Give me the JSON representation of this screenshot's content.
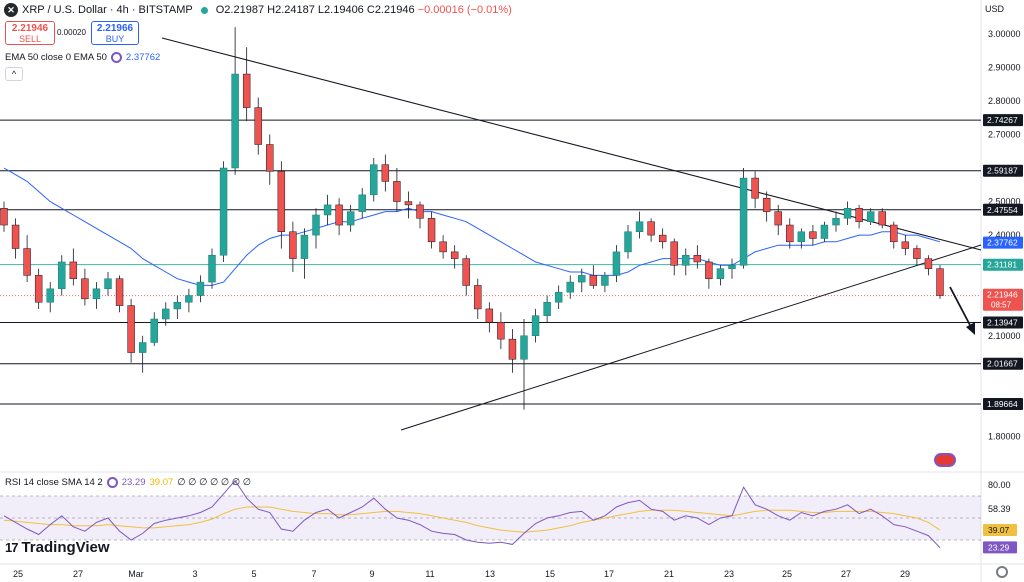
{
  "header": {
    "symbol_icon": "xrp-logo-icon",
    "title": "XRP / U.S. Dollar · 4h · BITSTAMP",
    "status_icon": "market-open-dot-icon",
    "ohlc": {
      "o": "O2.21987",
      "h": "H2.24187",
      "l": "L2.19406",
      "c": "C2.21946",
      "chg": "−0.00016 (−0.01%)"
    }
  },
  "trade": {
    "sell_price": "2.21946",
    "sell_label": "SELL",
    "spread": "0.00020",
    "buy_price": "2.21966",
    "buy_label": "BUY"
  },
  "ema_legend": {
    "label": "EMA 50 close 0 EMA 50",
    "value": "2.37762"
  },
  "rsi_legend": {
    "label": "RSI 14 close SMA 14 2",
    "rsi": "23.29",
    "sma": "39.07",
    "rest": "∅ ∅ ∅ ∅ ∅ ∅ ∅"
  },
  "currency": "USD",
  "logo": {
    "mark": "17",
    "text": "TradingView"
  },
  "chart_data": {
    "type": "candlestick",
    "yrange": [
      1.7,
      3.05
    ],
    "price_ticks": [
      "3.00000",
      "2.90000",
      "2.80000",
      "2.70000",
      "2.50000",
      "2.40000",
      "2.10000",
      "1.80000"
    ],
    "price_tick_values": [
      3.0,
      2.9,
      2.8,
      2.7,
      2.5,
      2.4,
      2.1,
      1.8
    ],
    "x_labels": [
      "25",
      "27",
      "Mar",
      "3",
      "5",
      "7",
      "9",
      "11",
      "13",
      "15",
      "17",
      "Mar 20",
      "21",
      "23",
      "25",
      "27",
      "29"
    ],
    "x_labels_shown": [
      "25",
      "27",
      "Mar",
      "3",
      "5",
      "7",
      "9",
      "11",
      "13",
      "15",
      "17",
      "20",
      "21",
      "23",
      "25",
      "27",
      "29"
    ],
    "level_lines": [
      2.74267,
      2.59187,
      2.47554,
      2.13947,
      2.01667,
      1.89664
    ],
    "level_labels": [
      "2.74267",
      "2.59187",
      "2.47554",
      "2.13947",
      "2.01667",
      "1.89664"
    ],
    "ema_label": "2.37762",
    "ema_value": 2.37762,
    "green_line_label": "2.31181",
    "green_line_value": 2.31181,
    "last_price_label": "2.21946",
    "countdown": "08:57",
    "last_price_value": 2.21946,
    "candles": [
      [
        2.48,
        2.5,
        2.41,
        2.43
      ],
      [
        2.43,
        2.45,
        2.33,
        2.36
      ],
      [
        2.36,
        2.4,
        2.26,
        2.28
      ],
      [
        2.28,
        2.3,
        2.18,
        2.2
      ],
      [
        2.2,
        2.26,
        2.17,
        2.24
      ],
      [
        2.24,
        2.34,
        2.22,
        2.32
      ],
      [
        2.32,
        2.36,
        2.25,
        2.27
      ],
      [
        2.27,
        2.3,
        2.19,
        2.21
      ],
      [
        2.21,
        2.26,
        2.18,
        2.24
      ],
      [
        2.24,
        2.29,
        2.22,
        2.27
      ],
      [
        2.27,
        2.28,
        2.17,
        2.19
      ],
      [
        2.19,
        2.21,
        2.02,
        2.05
      ],
      [
        2.05,
        2.1,
        1.99,
        2.08
      ],
      [
        2.08,
        2.17,
        2.07,
        2.15
      ],
      [
        2.15,
        2.2,
        2.13,
        2.18
      ],
      [
        2.18,
        2.22,
        2.15,
        2.2
      ],
      [
        2.2,
        2.24,
        2.17,
        2.22
      ],
      [
        2.22,
        2.28,
        2.2,
        2.26
      ],
      [
        2.26,
        2.36,
        2.24,
        2.34
      ],
      [
        2.34,
        2.62,
        2.32,
        2.6
      ],
      [
        2.6,
        3.02,
        2.58,
        2.88
      ],
      [
        2.88,
        2.96,
        2.74,
        2.78
      ],
      [
        2.78,
        2.81,
        2.64,
        2.67
      ],
      [
        2.67,
        2.7,
        2.55,
        2.59
      ],
      [
        2.59,
        2.62,
        2.36,
        2.41
      ],
      [
        2.41,
        2.44,
        2.29,
        2.33
      ],
      [
        2.33,
        2.42,
        2.27,
        2.4
      ],
      [
        2.4,
        2.48,
        2.36,
        2.46
      ],
      [
        2.46,
        2.52,
        2.43,
        2.49
      ],
      [
        2.49,
        2.51,
        2.4,
        2.43
      ],
      [
        2.43,
        2.49,
        2.41,
        2.47
      ],
      [
        2.47,
        2.54,
        2.45,
        2.52
      ],
      [
        2.52,
        2.63,
        2.5,
        2.61
      ],
      [
        2.61,
        2.64,
        2.53,
        2.56
      ],
      [
        2.56,
        2.6,
        2.47,
        2.5
      ],
      [
        2.5,
        2.53,
        2.45,
        2.49
      ],
      [
        2.49,
        2.5,
        2.42,
        2.45
      ],
      [
        2.45,
        2.47,
        2.36,
        2.38
      ],
      [
        2.38,
        2.4,
        2.33,
        2.35
      ],
      [
        2.35,
        2.37,
        2.3,
        2.33
      ],
      [
        2.33,
        2.34,
        2.22,
        2.25
      ],
      [
        2.25,
        2.27,
        2.15,
        2.18
      ],
      [
        2.18,
        2.2,
        2.11,
        2.14
      ],
      [
        2.14,
        2.17,
        2.06,
        2.09
      ],
      [
        2.09,
        2.12,
        1.99,
        2.03
      ],
      [
        2.03,
        2.15,
        1.88,
        2.1
      ],
      [
        2.1,
        2.18,
        2.08,
        2.16
      ],
      [
        2.16,
        2.22,
        2.14,
        2.2
      ],
      [
        2.2,
        2.25,
        2.18,
        2.23
      ],
      [
        2.23,
        2.28,
        2.21,
        2.26
      ],
      [
        2.26,
        2.3,
        2.23,
        2.28
      ],
      [
        2.28,
        2.31,
        2.24,
        2.25
      ],
      [
        2.25,
        2.29,
        2.23,
        2.28
      ],
      [
        2.28,
        2.37,
        2.26,
        2.35
      ],
      [
        2.35,
        2.43,
        2.33,
        2.41
      ],
      [
        2.41,
        2.47,
        2.39,
        2.44
      ],
      [
        2.44,
        2.45,
        2.38,
        2.4
      ],
      [
        2.4,
        2.42,
        2.36,
        2.38
      ],
      [
        2.38,
        2.39,
        2.28,
        2.31
      ],
      [
        2.31,
        2.36,
        2.28,
        2.34
      ],
      [
        2.34,
        2.37,
        2.3,
        2.32
      ],
      [
        2.32,
        2.33,
        2.24,
        2.27
      ],
      [
        2.27,
        2.31,
        2.25,
        2.3
      ],
      [
        2.3,
        2.33,
        2.27,
        2.31
      ],
      [
        2.31,
        2.6,
        2.3,
        2.57
      ],
      [
        2.57,
        2.59,
        2.48,
        2.51
      ],
      [
        2.51,
        2.53,
        2.44,
        2.47
      ],
      [
        2.47,
        2.49,
        2.4,
        2.43
      ],
      [
        2.43,
        2.45,
        2.36,
        2.38
      ],
      [
        2.38,
        2.42,
        2.36,
        2.41
      ],
      [
        2.41,
        2.43,
        2.37,
        2.39
      ],
      [
        2.39,
        2.44,
        2.38,
        2.43
      ],
      [
        2.43,
        2.47,
        2.41,
        2.45
      ],
      [
        2.45,
        2.5,
        2.43,
        2.48
      ],
      [
        2.48,
        2.49,
        2.42,
        2.44
      ],
      [
        2.44,
        2.48,
        2.43,
        2.47
      ],
      [
        2.47,
        2.48,
        2.42,
        2.43
      ],
      [
        2.43,
        2.44,
        2.36,
        2.38
      ],
      [
        2.38,
        2.4,
        2.34,
        2.36
      ],
      [
        2.36,
        2.37,
        2.31,
        2.33
      ],
      [
        2.33,
        2.34,
        2.28,
        2.3
      ],
      [
        2.3,
        2.31,
        2.21,
        2.22
      ]
    ],
    "ema_series": [
      2.6,
      2.58,
      2.56,
      2.53,
      2.5,
      2.48,
      2.46,
      2.44,
      2.42,
      2.4,
      2.38,
      2.36,
      2.33,
      2.31,
      2.29,
      2.27,
      2.26,
      2.25,
      2.25,
      2.26,
      2.3,
      2.34,
      2.37,
      2.39,
      2.4,
      2.4,
      2.41,
      2.42,
      2.43,
      2.44,
      2.44,
      2.45,
      2.46,
      2.47,
      2.47,
      2.48,
      2.47,
      2.47,
      2.46,
      2.45,
      2.44,
      2.42,
      2.4,
      2.38,
      2.36,
      2.34,
      2.32,
      2.31,
      2.3,
      2.29,
      2.29,
      2.28,
      2.28,
      2.28,
      2.29,
      2.31,
      2.32,
      2.33,
      2.33,
      2.33,
      2.33,
      2.32,
      2.31,
      2.31,
      2.33,
      2.35,
      2.36,
      2.37,
      2.37,
      2.37,
      2.37,
      2.38,
      2.38,
      2.39,
      2.4,
      2.4,
      2.41,
      2.41,
      2.4,
      2.4,
      2.39,
      2.38
    ],
    "rsi_panel": {
      "ticks": [
        "80.00",
        "58.39",
        "36.53"
      ],
      "tick_values": [
        80,
        58.39,
        36.53
      ],
      "rsi_label": "23.29",
      "sma_label": "39.07",
      "rsi_value": 23.29,
      "sma_value": 39.07,
      "band": [
        30,
        70
      ],
      "rsi_series": [
        52,
        46,
        40,
        35,
        44,
        52,
        42,
        38,
        46,
        50,
        38,
        30,
        36,
        45,
        48,
        50,
        52,
        55,
        60,
        72,
        84,
        68,
        58,
        55,
        40,
        38,
        48,
        55,
        58,
        50,
        55,
        60,
        68,
        58,
        50,
        48,
        44,
        38,
        36,
        35,
        30,
        28,
        27,
        28,
        26,
        36,
        45,
        50,
        52,
        55,
        56,
        48,
        52,
        60,
        64,
        66,
        58,
        56,
        48,
        52,
        50,
        44,
        50,
        52,
        78,
        62,
        58,
        52,
        48,
        55,
        52,
        56,
        58,
        62,
        54,
        58,
        52,
        44,
        42,
        38,
        34,
        23
      ],
      "sma_series": [
        48,
        47,
        46,
        45,
        44,
        44,
        43,
        43,
        43,
        44,
        43,
        42,
        41,
        41,
        42,
        43,
        44,
        46,
        49,
        54,
        58,
        60,
        60,
        60,
        58,
        56,
        55,
        54,
        54,
        53,
        53,
        54,
        55,
        56,
        56,
        55,
        54,
        52,
        50,
        48,
        46,
        43,
        41,
        39,
        38,
        37,
        38,
        39,
        41,
        43,
        46,
        48,
        50,
        52,
        54,
        56,
        57,
        57,
        57,
        56,
        55,
        54,
        53,
        52,
        54,
        56,
        57,
        57,
        57,
        56,
        55,
        55,
        56,
        56,
        56,
        56,
        55,
        54,
        52,
        50,
        46,
        39
      ]
    }
  }
}
